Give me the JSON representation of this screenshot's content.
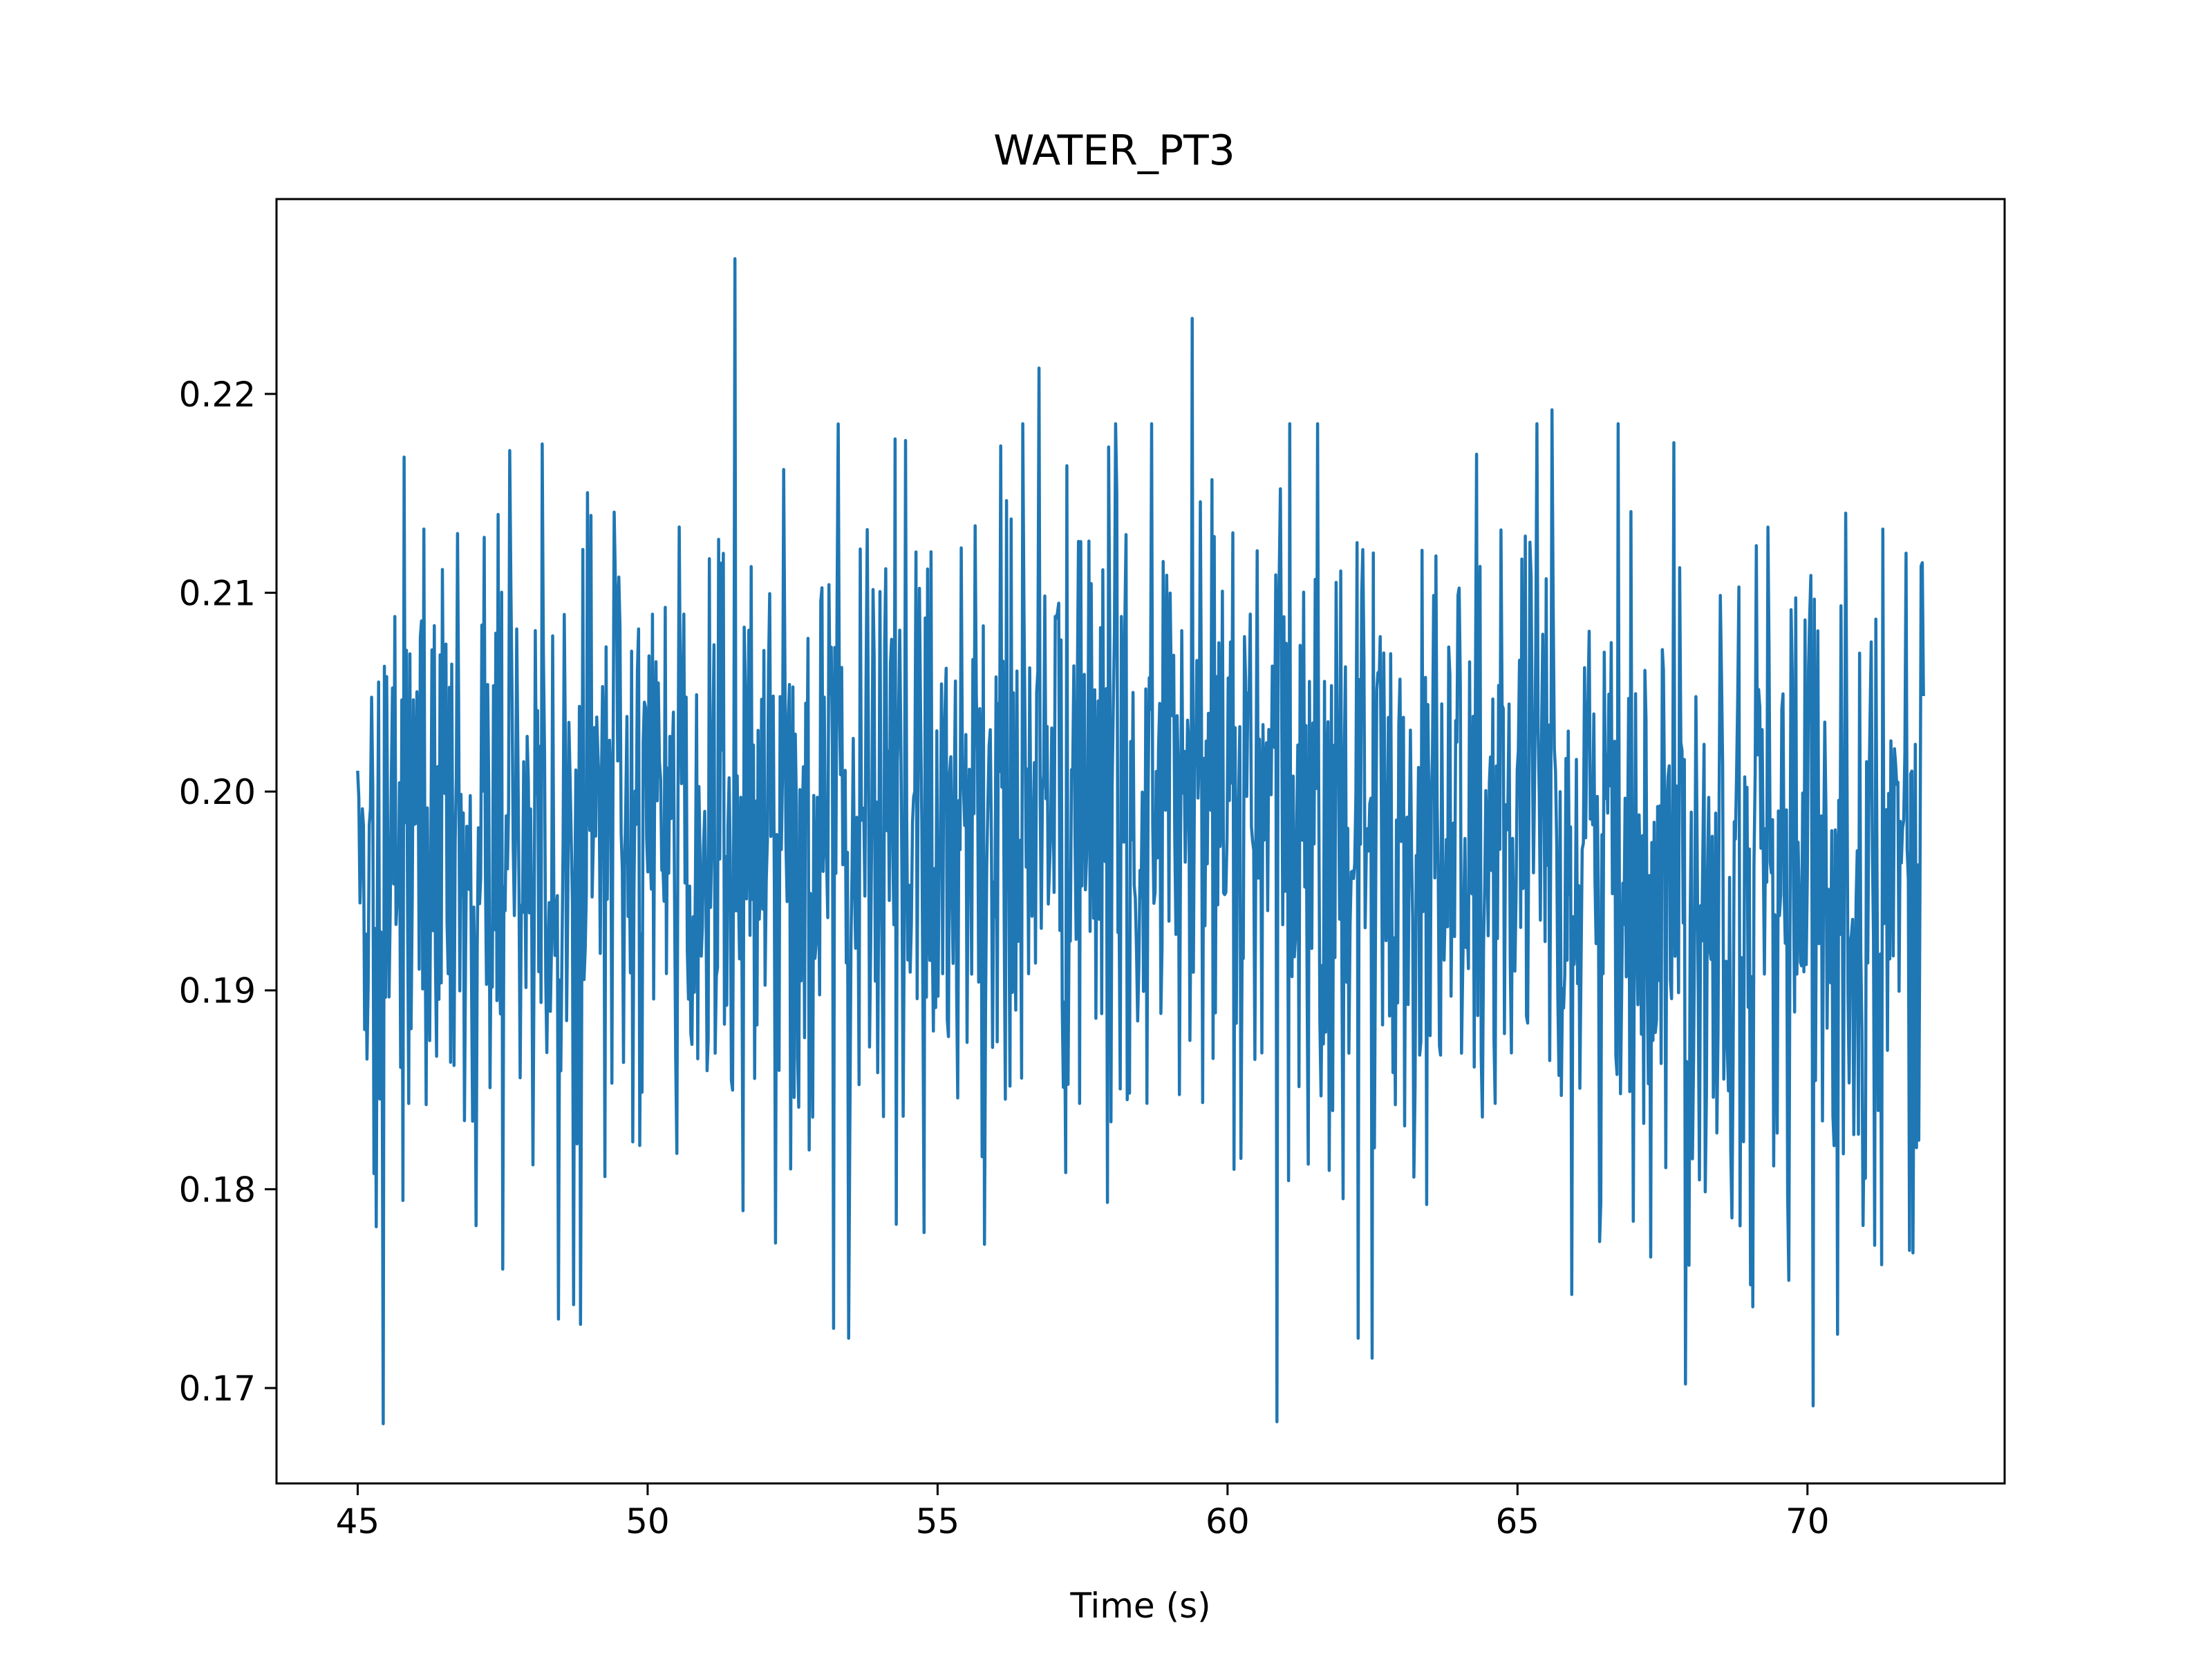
{
  "chart_data": {
    "type": "line",
    "title": "WATER_PT3",
    "xlabel": "Time (s)",
    "ylabel": "",
    "xlim": [
      43.6,
      73.4
    ],
    "ylim": [
      0.1652,
      0.2298
    ],
    "xticks": [
      45,
      50,
      55,
      60,
      65,
      70
    ],
    "xtick_labels": [
      "45",
      "50",
      "55",
      "60",
      "65",
      "70"
    ],
    "yticks": [
      0.17,
      0.18,
      0.19,
      0.2,
      0.21,
      0.22
    ],
    "ytick_labels": [
      "0.17",
      "0.18",
      "0.19",
      "0.20",
      "0.21",
      "0.22"
    ],
    "grid": false,
    "legend": "none",
    "series": [
      {
        "color": "#1f77b4",
        "x_start": 45.0,
        "x_end": 72.0,
        "n_points": 1350,
        "approx_mean_start": 0.197,
        "approx_mean_middle": 0.199,
        "approx_mean_end": 0.195,
        "approx_noise_std": 0.0085,
        "highlights": [
          {
            "x": 45.45,
            "y": 0.1682
          },
          {
            "x": 48.85,
            "y": 0.1732
          },
          {
            "x": 51.5,
            "y": 0.2268
          },
          {
            "x": 53.2,
            "y": 0.173
          },
          {
            "x": 56.75,
            "y": 0.2213
          },
          {
            "x": 59.4,
            "y": 0.2238
          },
          {
            "x": 60.85,
            "y": 0.1683
          },
          {
            "x": 62.5,
            "y": 0.1715
          },
          {
            "x": 65.6,
            "y": 0.2192
          },
          {
            "x": 67.9,
            "y": 0.1702
          },
          {
            "x": 70.1,
            "y": 0.1691
          },
          {
            "x": 71.3,
            "y": 0.2132
          },
          {
            "x": 72.0,
            "y": 0.2048
          }
        ]
      }
    ]
  }
}
